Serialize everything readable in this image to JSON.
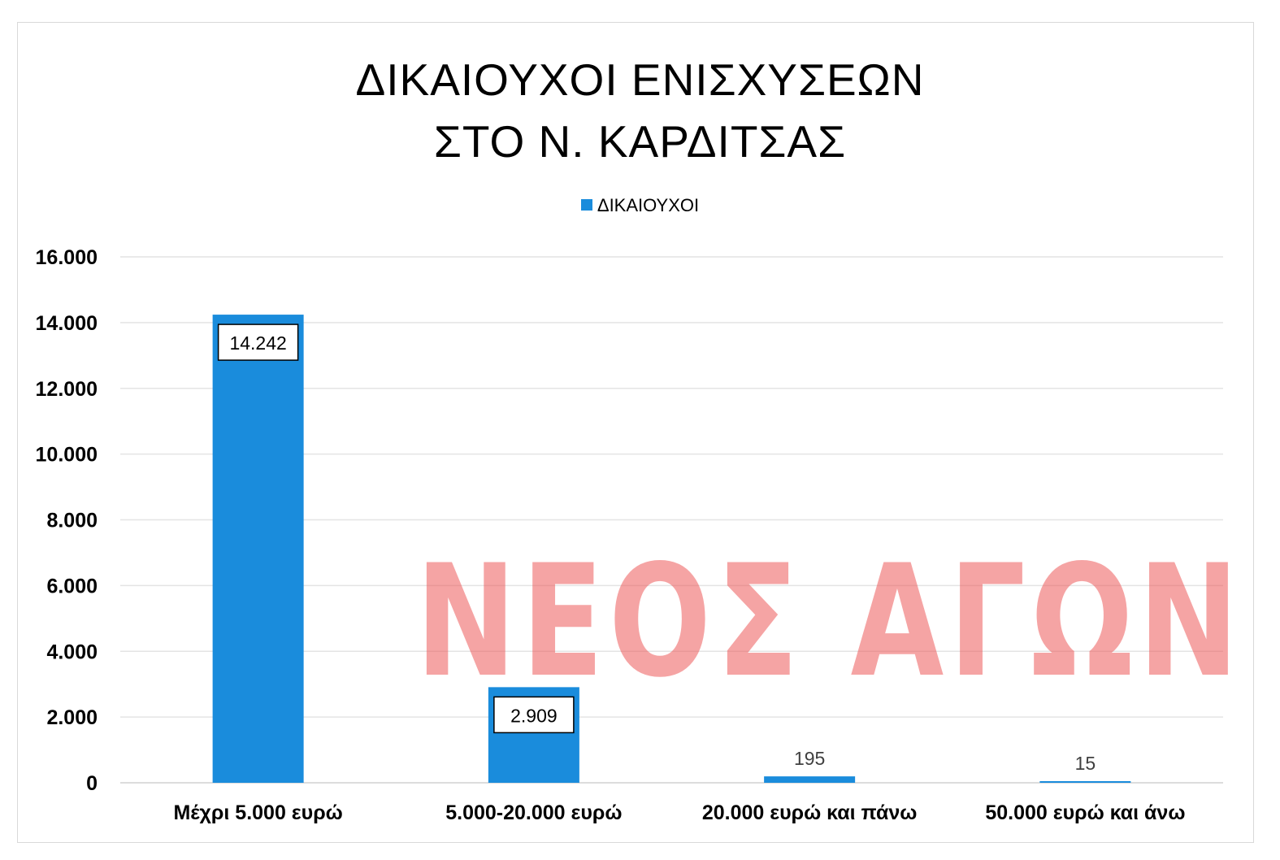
{
  "chart_data": {
    "type": "bar",
    "title": [
      "ΔΙΚΑΙΟΥΧΟΙ ΕΝΙΣΧΥΣΕΩΝ",
      "ΣΤΟ Ν. ΚΑΡΔΙΤΣΑΣ"
    ],
    "legend_position": "top",
    "grid": true,
    "ylim": [
      0,
      16000
    ],
    "y_ticks": [
      0,
      2000,
      4000,
      6000,
      8000,
      10000,
      12000,
      14000,
      16000
    ],
    "y_tick_labels": [
      "0",
      "2.000",
      "4.000",
      "6.000",
      "8.000",
      "10.000",
      "12.000",
      "14.000",
      "16.000"
    ],
    "categories": [
      "Μέχρι 5.000 ευρώ",
      "5.000-20.000 ευρώ",
      "20.000 ευρώ και πάνω",
      "50.000 ευρώ και άνω"
    ],
    "series": [
      {
        "name": "ΔΙΚΑΙΟΥΧΟΙ",
        "color": "#1a8cdc",
        "values": [
          14242,
          2909,
          195,
          15
        ],
        "data_labels": [
          "14.242",
          "2.909",
          "195",
          "15"
        ],
        "label_boxed": [
          true,
          true,
          false,
          false
        ]
      }
    ]
  },
  "watermark": {
    "text": "ΝΕΟΣ ΑΓΩΝ",
    "color": "#ee5a5a"
  }
}
